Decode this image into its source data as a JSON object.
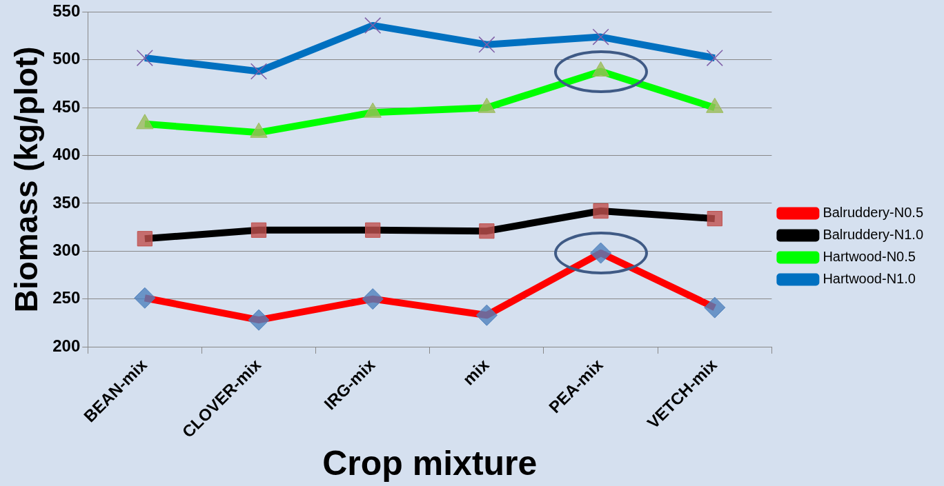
{
  "chart_data": {
    "type": "line",
    "xlabel": "Crop mixture",
    "ylabel": "Biomass (kg/plot)",
    "categories": [
      "BEAN-mix",
      "CLOVER-mix",
      "IRG-mix",
      "mix",
      "PEA-mix",
      "VETCH-mix"
    ],
    "series": [
      {
        "name": "Balruddery-N0.5",
        "color": "#ff0000",
        "marker": "diamond",
        "values": [
          251,
          228,
          250,
          233,
          298,
          241
        ]
      },
      {
        "name": "Balruddery-N1.0",
        "color": "#000000",
        "marker": "square",
        "values": [
          313,
          322,
          322,
          321,
          342,
          334
        ]
      },
      {
        "name": "Hartwood-N0.5",
        "color": "#00ff00",
        "marker": "triangle",
        "values": [
          433,
          424,
          445,
          450,
          488,
          450
        ]
      },
      {
        "name": "Hartwood-N1.0",
        "color": "#0070c0",
        "marker": "cross",
        "values": [
          502,
          488,
          536,
          516,
          524,
          502
        ]
      }
    ],
    "ylim": [
      200,
      550
    ],
    "yticks": [
      200,
      250,
      300,
      350,
      400,
      450,
      500,
      550
    ],
    "grid": "y",
    "legend": "right"
  }
}
